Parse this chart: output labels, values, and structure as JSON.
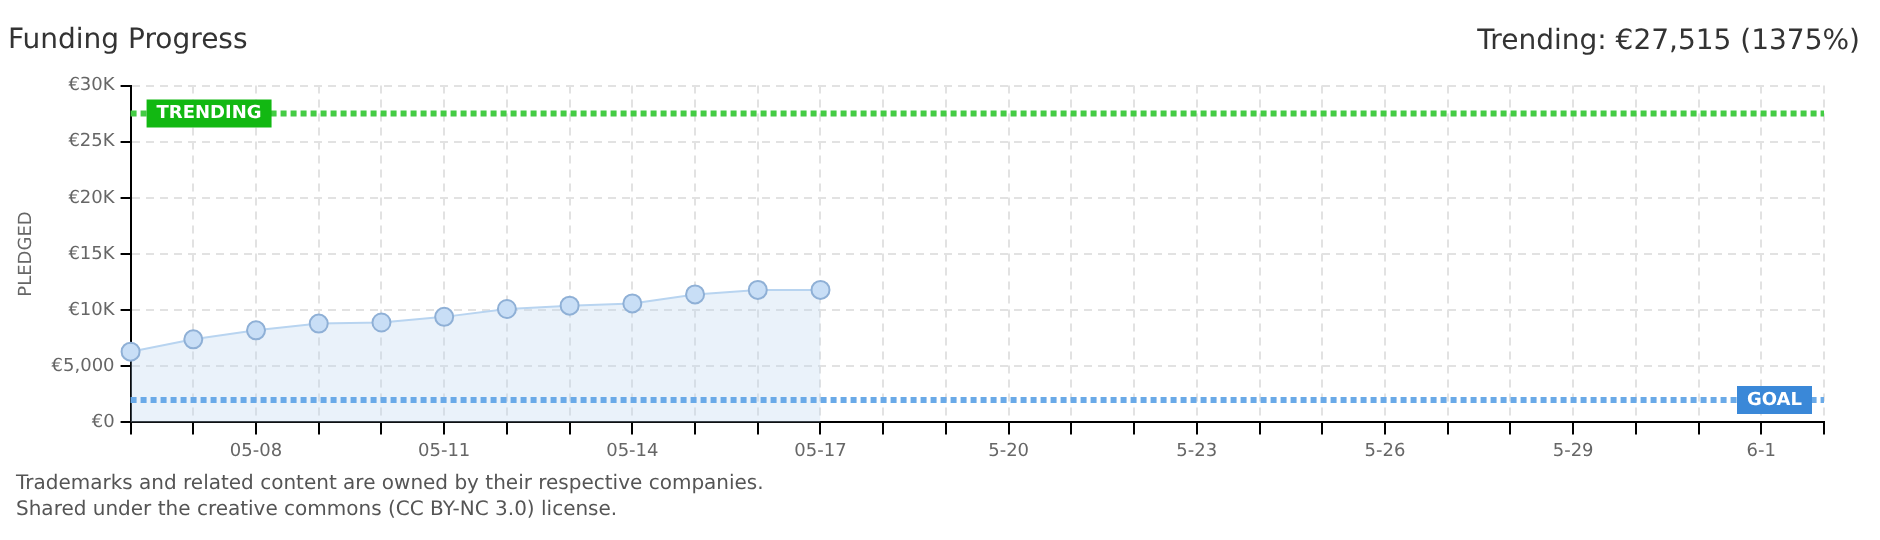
{
  "chart_data": {
    "type": "area",
    "title": "Funding Progress",
    "ylabel": "PLEDGED",
    "annotations": [
      "Trending: €27,515 (1375%)",
      "Trademarks and related content are owned by their respective companies.",
      "Shared under the creative commons (CC BY-NC 3.0) license."
    ],
    "categories": [
      null,
      null,
      "05-08",
      null,
      null,
      "05-11",
      null,
      null,
      "05-14",
      null,
      null,
      "05-17",
      null,
      null,
      "5-20",
      null,
      null,
      "5-23",
      null,
      null,
      "5-26",
      null,
      null,
      "5-29",
      null,
      null,
      "6-1",
      null
    ],
    "series": [
      {
        "color": "#b8d4f0",
        "values": [
          6300,
          7400,
          8200,
          8800,
          8900,
          9400,
          10100,
          10400,
          10600,
          11400,
          11800,
          11800,
          null,
          null,
          null,
          null,
          null,
          null,
          null,
          null,
          null,
          null,
          null,
          null,
          null,
          null,
          null,
          null
        ]
      }
    ],
    "ylim": [
      0,
      30000
    ],
    "yticks": [
      {
        "value": 0,
        "label": "€0"
      },
      {
        "value": 5000,
        "label": "€5,000"
      },
      {
        "value": 10000,
        "label": "€10K"
      },
      {
        "value": 15000,
        "label": "€15K"
      },
      {
        "value": 20000,
        "label": "€20K"
      },
      {
        "value": 25000,
        "label": "€25K"
      },
      {
        "value": 30000,
        "label": "€30K"
      }
    ],
    "ref_lines": [
      {
        "axis": "y",
        "value": 27515,
        "label": "TRENDING",
        "color": "#44cc44",
        "line_style": "dotted"
      },
      {
        "axis": "y",
        "value": 2000,
        "label": "GOAL",
        "color": "#6aaae8",
        "line_style": "dotted"
      }
    ],
    "grid": true,
    "marker": "circle",
    "legend": false
  }
}
